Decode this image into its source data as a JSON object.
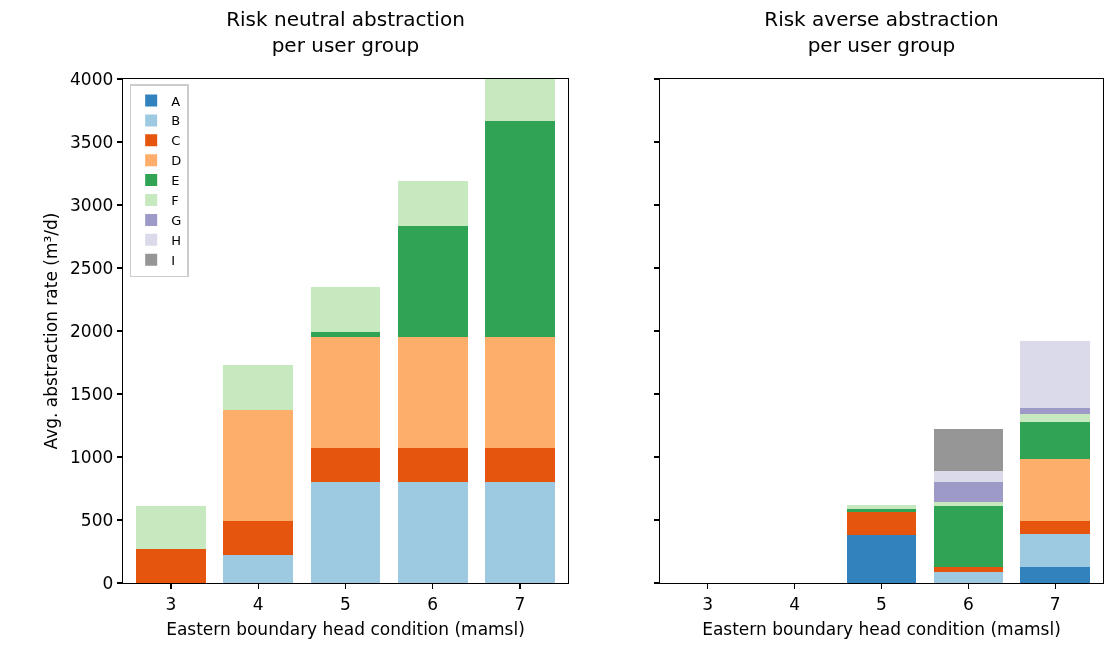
{
  "chart_data": [
    {
      "type": "bar",
      "title": "Risk neutral abstraction\nper user group",
      "xlabel": "Eastern boundary head condition (mamsl)",
      "ylabel": "Avg. abstraction rate (m³/d)",
      "categories": [
        "3",
        "4",
        "5",
        "6",
        "7"
      ],
      "stacked": true,
      "ylim": [
        0,
        4000
      ],
      "yticks": [
        0,
        500,
        1000,
        1500,
        2000,
        2500,
        3000,
        3500,
        4000
      ],
      "legend": "top left",
      "series": [
        {
          "name": "A",
          "color": "#3182bd",
          "values": [
            0,
            0,
            0,
            0,
            0
          ]
        },
        {
          "name": "B",
          "color": "#9ecae1",
          "values": [
            0,
            220,
            800,
            800,
            800
          ]
        },
        {
          "name": "C",
          "color": "#e6550d",
          "values": [
            270,
            270,
            270,
            270,
            270
          ]
        },
        {
          "name": "D",
          "color": "#fdae6b",
          "values": [
            0,
            880,
            880,
            880,
            880
          ]
        },
        {
          "name": "E",
          "color": "#31a354",
          "values": [
            0,
            0,
            40,
            880,
            1720
          ]
        },
        {
          "name": "F",
          "color": "#c7e9c0",
          "values": [
            340,
            360,
            360,
            360,
            330
          ]
        },
        {
          "name": "G",
          "color": "#9e9ac8",
          "values": [
            0,
            0,
            0,
            0,
            0
          ]
        },
        {
          "name": "H",
          "color": "#dadaeb",
          "values": [
            0,
            0,
            0,
            0,
            0
          ]
        },
        {
          "name": "I",
          "color": "#969696",
          "values": [
            0,
            0,
            0,
            0,
            0
          ]
        }
      ]
    },
    {
      "type": "bar",
      "title": "Risk averse abstraction\nper user group",
      "xlabel": "Eastern boundary head condition (mamsl)",
      "categories": [
        "3",
        "4",
        "5",
        "6",
        "7"
      ],
      "stacked": true,
      "ylim": [
        0,
        4000
      ],
      "yticks": [
        0,
        500,
        1000,
        1500,
        2000,
        2500,
        3000,
        3500,
        4000
      ],
      "tick_labels": "x",
      "series": [
        {
          "color": "#3182bd",
          "values": [
            0,
            0,
            380,
            0,
            125
          ]
        },
        {
          "color": "#9ecae1",
          "values": [
            0,
            0,
            0,
            90,
            260
          ]
        },
        {
          "color": "#e6550d",
          "values": [
            0,
            0,
            180,
            35,
            105
          ]
        },
        {
          "color": "#fdae6b",
          "values": [
            0,
            0,
            0,
            0,
            495
          ]
        },
        {
          "color": "#31a354",
          "values": [
            0,
            0,
            30,
            485,
            295
          ]
        },
        {
          "color": "#c7e9c0",
          "values": [
            0,
            0,
            30,
            30,
            65
          ]
        },
        {
          "color": "#9e9ac8",
          "values": [
            0,
            0,
            0,
            160,
            40
          ]
        },
        {
          "color": "#dadaeb",
          "values": [
            0,
            0,
            0,
            90,
            535
          ]
        },
        {
          "color": "#969696",
          "values": [
            0,
            0,
            0,
            330,
            0
          ]
        }
      ]
    }
  ]
}
